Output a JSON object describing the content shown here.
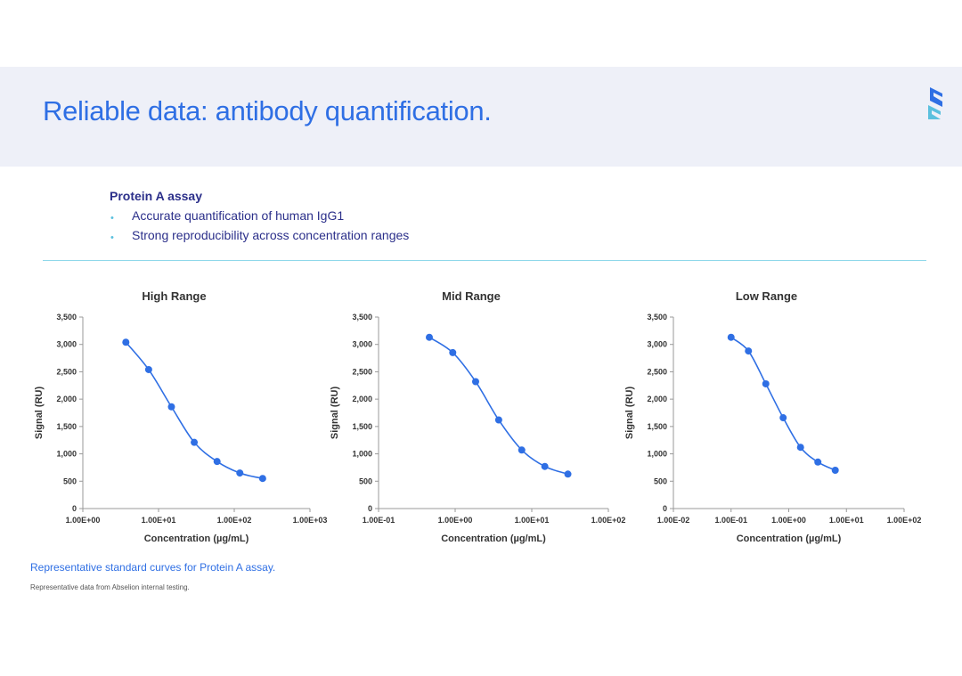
{
  "slide": {
    "title": "Reliable data: antibody quantification.",
    "logo": "brand-s-logo",
    "accent_color": "#2f6fe4",
    "band_color": "#eef0f8"
  },
  "assay": {
    "heading": "Protein A assay",
    "bullets": [
      "Accurate quantification of human IgG1",
      "Strong reproducibility across concentration ranges"
    ]
  },
  "caption": "Representative standard curves for Protein A assay.",
  "source_note": "Representative data from Abselion internal testing.",
  "chart_data": [
    {
      "type": "line",
      "title": "High Range",
      "xlabel": "Concentration (µg/mL)",
      "ylabel": "Signal (RU)",
      "x_scale": "log",
      "xlim": [
        1,
        1000
      ],
      "x_ticks": [
        "1.00E+00",
        "1.00E+01",
        "1.00E+02",
        "1.00E+03"
      ],
      "ylim": [
        0,
        3500
      ],
      "y_ticks": [
        "0",
        "500",
        "1,000",
        "1,500",
        "2,000",
        "2,500",
        "3,000",
        "3,500"
      ],
      "series": [
        {
          "color": "#2f6fe4",
          "x": [
            3.7,
            7.4,
            14.8,
            29.6,
            59.3,
            118.5,
            237
          ],
          "y": [
            3040,
            2540,
            1860,
            1210,
            860,
            650,
            550
          ]
        }
      ],
      "grid": false
    },
    {
      "type": "line",
      "title": "Mid Range",
      "xlabel": "Concentration (µg/mL)",
      "ylabel": "Signal (RU)",
      "x_scale": "log",
      "xlim": [
        0.1,
        100
      ],
      "x_ticks": [
        "1.00E-01",
        "1.00E+00",
        "1.00E+01",
        "1.00E+02"
      ],
      "ylim": [
        0,
        3500
      ],
      "y_ticks": [
        "0",
        "500",
        "1,000",
        "1,500",
        "2,000",
        "2,500",
        "3,000",
        "3,500"
      ],
      "series": [
        {
          "color": "#2f6fe4",
          "x": [
            0.46,
            0.93,
            1.85,
            3.7,
            7.4,
            14.8,
            29.6
          ],
          "y": [
            3130,
            2850,
            2320,
            1620,
            1070,
            770,
            630
          ]
        }
      ],
      "grid": false
    },
    {
      "type": "line",
      "title": "Low Range",
      "xlabel": "Concentration (µg/mL)",
      "ylabel": "Signal (RU)",
      "x_scale": "log",
      "xlim": [
        0.01,
        100
      ],
      "x_ticks": [
        "1.00E-02",
        "1.00E-01",
        "1.00E+00",
        "1.00E+01",
        "1.00E+02"
      ],
      "ylim": [
        0,
        3500
      ],
      "y_ticks": [
        "0",
        "500",
        "1,000",
        "1,500",
        "2,000",
        "2,500",
        "3,000",
        "3,500"
      ],
      "series": [
        {
          "color": "#2f6fe4",
          "x": [
            0.1,
            0.2,
            0.4,
            0.8,
            1.6,
            3.2,
            6.4
          ],
          "y": [
            3130,
            2880,
            2280,
            1660,
            1120,
            850,
            700
          ]
        }
      ],
      "grid": false
    }
  ]
}
